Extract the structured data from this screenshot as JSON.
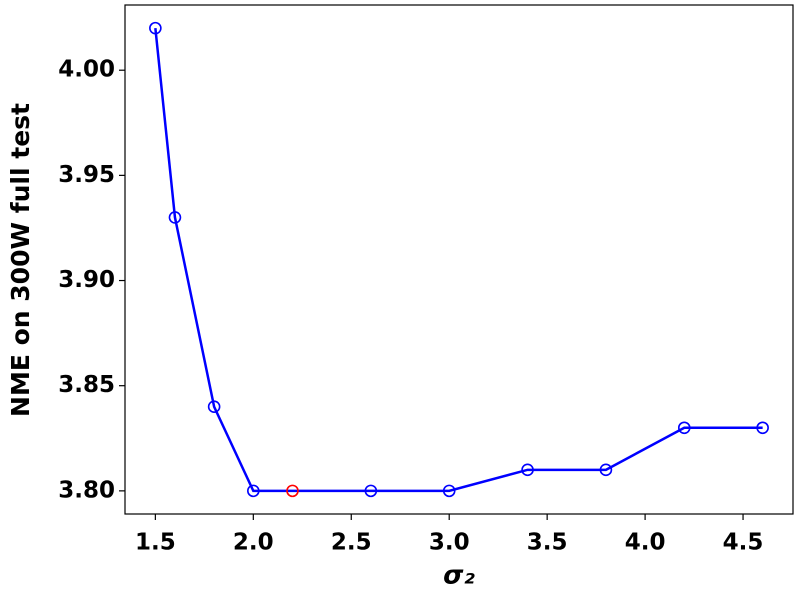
{
  "chart_data": {
    "type": "line",
    "xlabel": "σ₂",
    "ylabel": "NME on 300W full test",
    "x": [
      1.5,
      1.6,
      1.8,
      2.0,
      2.2,
      2.6,
      3.0,
      3.4,
      3.8,
      4.2,
      4.6
    ],
    "series": [
      {
        "color": "#0000ff",
        "values": [
          4.02,
          3.93,
          3.84,
          3.8,
          3.8,
          3.8,
          3.8,
          3.81,
          3.81,
          3.83,
          3.83
        ],
        "marker_colors": [
          "#0000ff",
          "#0000ff",
          "#0000ff",
          "#0000ff",
          "#ff0000",
          "#0000ff",
          "#0000ff",
          "#0000ff",
          "#0000ff",
          "#0000ff",
          "#0000ff"
        ]
      }
    ],
    "xlim": [
      1.345,
      4.755
    ],
    "ylim": [
      3.789,
      4.031
    ],
    "xticks": [
      1.5,
      {
        "value": 2.0,
        "label": "2.0"
      },
      2.5,
      {
        "value": 3.0,
        "label": "3.0"
      },
      3.5,
      {
        "value": 4.0,
        "label": "4.0"
      },
      4.5
    ],
    "yticks": [
      {
        "value": 3.8,
        "label": "3.80"
      },
      3.85,
      {
        "value": 3.9,
        "label": "3.90"
      },
      3.95,
      {
        "value": 4.0,
        "label": "4.00"
      }
    ]
  }
}
